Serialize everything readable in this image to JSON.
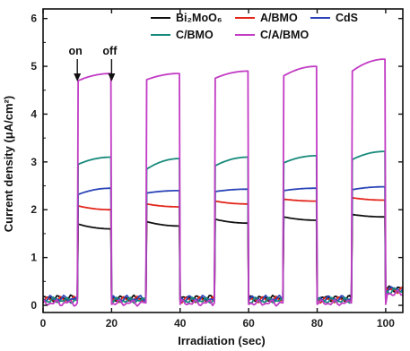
{
  "chart_data": {
    "type": "line",
    "xlabel": "Irradiation (sec)",
    "ylabel": "Current density (μA/cm²)",
    "xlim": [
      0,
      105
    ],
    "ylim": [
      -0.15,
      6.2
    ],
    "x_ticks": [
      "0",
      "20",
      "40",
      "60",
      "80",
      "100"
    ],
    "y_ticks": [
      "0",
      "1",
      "2",
      "3",
      "4",
      "5",
      "6"
    ],
    "grid": false,
    "legend_position": "top",
    "light_on_off_cycles": [
      [
        10,
        20
      ],
      [
        30,
        40
      ],
      [
        50,
        60
      ],
      [
        70,
        80
      ],
      [
        90,
        100
      ]
    ],
    "annotations": [
      {
        "label": "on",
        "x": 10
      },
      {
        "label": "off",
        "x": 20
      }
    ],
    "series": [
      {
        "name": "Bi₂MoO₆",
        "color": "#111111",
        "dark_current": 0.15,
        "on_start": [
          1.7,
          1.75,
          1.8,
          1.85,
          1.9
        ],
        "on_end": [
          1.6,
          1.66,
          1.72,
          1.78,
          1.85
        ]
      },
      {
        "name": "A/BMO",
        "color": "#e3261c",
        "dark_current": 0.12,
        "on_start": [
          2.08,
          2.12,
          2.18,
          2.22,
          2.25
        ],
        "on_end": [
          2.0,
          2.06,
          2.12,
          2.18,
          2.2
        ]
      },
      {
        "name": "CdS",
        "color": "#2b45b8",
        "dark_current": 0.14,
        "on_start": [
          2.32,
          2.35,
          2.38,
          2.4,
          2.42
        ],
        "on_end": [
          2.45,
          2.4,
          2.43,
          2.45,
          2.48
        ]
      },
      {
        "name": "C/BMO",
        "color": "#188a7c",
        "dark_current": 0.1,
        "on_start": [
          2.95,
          2.85,
          2.92,
          2.98,
          3.05
        ],
        "on_end": [
          3.1,
          3.07,
          3.1,
          3.13,
          3.22
        ]
      },
      {
        "name": "C/A/BMO",
        "color": "#c23bc4",
        "dark_current": 0.05,
        "on_start": [
          4.7,
          4.72,
          4.75,
          4.8,
          4.9
        ],
        "on_end": [
          4.85,
          4.85,
          4.9,
          5.0,
          5.15
        ]
      }
    ]
  }
}
